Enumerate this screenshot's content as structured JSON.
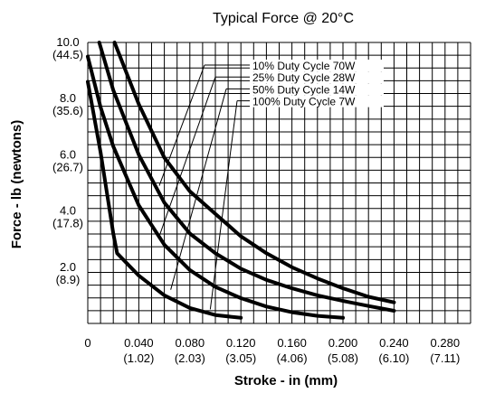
{
  "chart_data": {
    "type": "line",
    "title": "Typical Force @ 20°C",
    "xlabel": "Stroke - in (mm)",
    "ylabel": "Force - lb (newtons)",
    "xlim": [
      0,
      0.3
    ],
    "ylim": [
      0,
      10
    ],
    "grid": true,
    "x_ticks": [
      {
        "value": 0,
        "label": "0",
        "sub": ""
      },
      {
        "value": 0.04,
        "label": "0.040",
        "sub": "(1.02)"
      },
      {
        "value": 0.08,
        "label": "0.080",
        "sub": "(2.03)"
      },
      {
        "value": 0.12,
        "label": "0.120",
        "sub": "(3.05)"
      },
      {
        "value": 0.16,
        "label": "0.160",
        "sub": "(4.06)"
      },
      {
        "value": 0.2,
        "label": "0.200",
        "sub": "(5.08)"
      },
      {
        "value": 0.24,
        "label": "0.240",
        "sub": "(6.10)"
      },
      {
        "value": 0.28,
        "label": "0.280",
        "sub": "(7.11)"
      }
    ],
    "y_ticks": [
      {
        "value": 10,
        "label": "10.0",
        "sub": "(44.5)"
      },
      {
        "value": 8,
        "label": "8.0",
        "sub": "(35.6)"
      },
      {
        "value": 6,
        "label": "6.0",
        "sub": "(26.7)"
      },
      {
        "value": 4,
        "label": "4.0",
        "sub": "(17.8)"
      },
      {
        "value": 2,
        "label": "2.0",
        "sub": "(8.9)"
      }
    ],
    "series": [
      {
        "name": "10% Duty Cycle 70W",
        "x": [
          0.021,
          0.04,
          0.06,
          0.08,
          0.1,
          0.12,
          0.14,
          0.16,
          0.18,
          0.2,
          0.22,
          0.24
        ],
        "y": [
          10.0,
          7.8,
          5.9,
          4.7,
          3.9,
          3.1,
          2.5,
          2.0,
          1.6,
          1.25,
          0.95,
          0.75
        ]
      },
      {
        "name": "25% Duty Cycle 28W",
        "x": [
          0.009,
          0.02,
          0.04,
          0.06,
          0.08,
          0.1,
          0.12,
          0.14,
          0.16,
          0.18,
          0.2,
          0.22,
          0.24
        ],
        "y": [
          10.0,
          8.3,
          6.0,
          4.3,
          3.2,
          2.5,
          1.95,
          1.55,
          1.25,
          1.0,
          0.8,
          0.62,
          0.45
        ]
      },
      {
        "name": "50% Duty Cycle 14W",
        "x": [
          0.0,
          0.01,
          0.02,
          0.04,
          0.06,
          0.08,
          0.1,
          0.12,
          0.14,
          0.16,
          0.18,
          0.2
        ],
        "y": [
          9.5,
          7.7,
          6.3,
          4.2,
          2.8,
          1.9,
          1.3,
          0.9,
          0.6,
          0.4,
          0.27,
          0.2
        ]
      },
      {
        "name": "100% Duty Cycle 7W",
        "x": [
          0.0,
          0.01,
          0.02,
          0.023,
          0.04,
          0.06,
          0.08,
          0.1,
          0.12
        ],
        "y": [
          8.6,
          6.1,
          3.2,
          2.5,
          1.7,
          1.0,
          0.55,
          0.3,
          0.2
        ]
      }
    ],
    "legend_pointers": [
      {
        "x": 0.056,
        "y": 4.9
      },
      {
        "x": 0.056,
        "y": 3.1
      },
      {
        "x": 0.065,
        "y": 1.2
      },
      {
        "x": 0.096,
        "y": 0.5
      }
    ]
  }
}
